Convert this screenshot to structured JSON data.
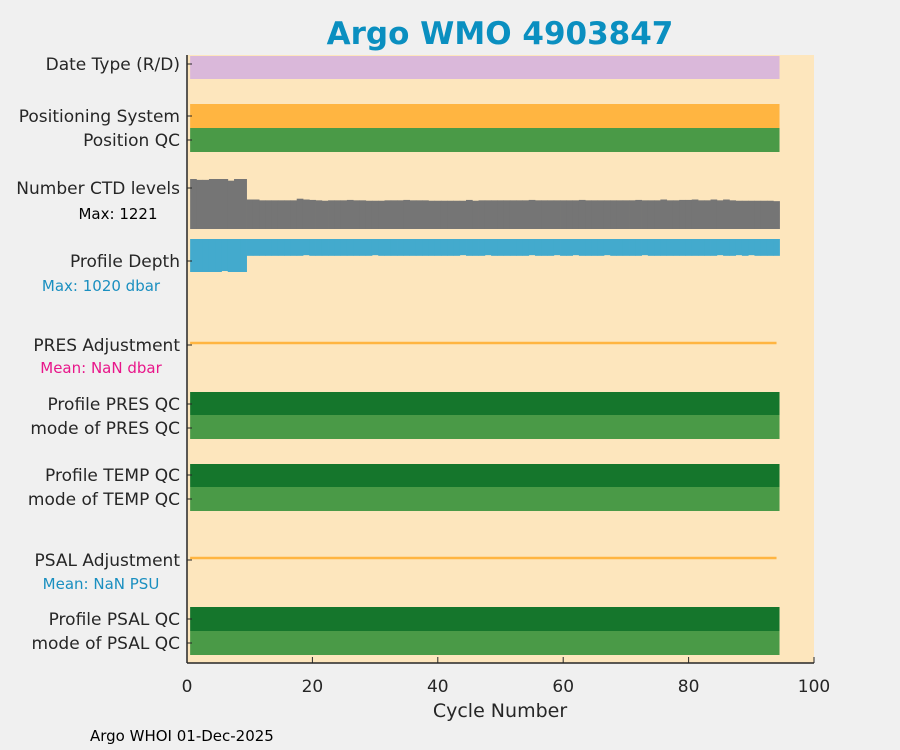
{
  "chart_data": {
    "type": "bar",
    "title": "Argo WMO 4903847",
    "xlabel": "Cycle Number",
    "xlim": [
      0,
      100
    ],
    "xticks": [
      "0",
      "20",
      "40",
      "60",
      "80",
      "100"
    ],
    "footer": "Argo WHOI 01-Dec-2025",
    "cycles_range": [
      1,
      94
    ],
    "rows": [
      {
        "label": "Date Type (R/D)",
        "kind": "band",
        "color": "#dab8da"
      },
      {
        "label": "Positioning System",
        "kind": "band",
        "color": "#ffb541"
      },
      {
        "label": "Position QC",
        "kind": "band",
        "color": "#4a9a47"
      },
      {
        "label": "Number CTD levels",
        "sublabel": "Max: 1221",
        "kind": "ctd",
        "color": "#757575",
        "sublabel_color": "#000000"
      },
      {
        "label": "Profile Depth",
        "sublabel": "Max: 1020 dbar",
        "kind": "depth",
        "color": "#43aacd",
        "sublabel_color": "#1a8fc0"
      },
      {
        "label": "PRES Adjustment",
        "sublabel": "Mean:  NaN dbar",
        "kind": "line",
        "color": "#ffb541",
        "sublabel_color": "#e8168a"
      },
      {
        "label": "Profile PRES QC",
        "kind": "band",
        "color": "#15762c"
      },
      {
        "label": "mode of PRES QC",
        "kind": "band",
        "color": "#4a9a47"
      },
      {
        "label": "Profile TEMP QC",
        "kind": "band",
        "color": "#15762c"
      },
      {
        "label": "mode of TEMP QC",
        "kind": "band",
        "color": "#4a9a47"
      },
      {
        "label": "PSAL Adjustment",
        "sublabel": "Mean:  NaN PSU",
        "kind": "line",
        "color": "#ffb541",
        "sublabel_color": "#1a8fc0"
      },
      {
        "label": "Profile PSAL QC",
        "kind": "band",
        "color": "#15762c"
      },
      {
        "label": "mode of PSAL QC",
        "kind": "band",
        "color": "#4a9a47"
      }
    ],
    "ctd_levels": [
      1221,
      1200,
      1200,
      1221,
      1221,
      1221,
      1180,
      1221,
      1221,
      720,
      720,
      700,
      700,
      700,
      700,
      700,
      700,
      740,
      720,
      710,
      700,
      690,
      700,
      700,
      700,
      710,
      700,
      700,
      690,
      690,
      690,
      700,
      700,
      700,
      710,
      700,
      700,
      700,
      690,
      690,
      690,
      690,
      690,
      690,
      710,
      690,
      700,
      700,
      700,
      700,
      700,
      700,
      700,
      700,
      710,
      700,
      700,
      700,
      700,
      700,
      700,
      700,
      710,
      700,
      700,
      700,
      700,
      700,
      700,
      700,
      700,
      710,
      700,
      700,
      700,
      720,
      700,
      700,
      710,
      710,
      720,
      700,
      700,
      720,
      700,
      720,
      700,
      690,
      690,
      690,
      690,
      690,
      690,
      680
    ],
    "profile_depth": [
      1020,
      1020,
      1020,
      1020,
      1020,
      990,
      1020,
      1020,
      1020,
      520,
      520,
      520,
      520,
      520,
      520,
      520,
      520,
      520,
      500,
      520,
      520,
      520,
      520,
      520,
      520,
      520,
      520,
      520,
      520,
      500,
      520,
      520,
      520,
      520,
      520,
      520,
      520,
      520,
      520,
      520,
      520,
      520,
      520,
      500,
      520,
      520,
      520,
      500,
      520,
      520,
      520,
      520,
      520,
      520,
      500,
      520,
      520,
      520,
      500,
      520,
      520,
      500,
      520,
      520,
      520,
      520,
      500,
      520,
      520,
      520,
      520,
      520,
      500,
      520,
      520,
      520,
      520,
      520,
      520,
      520,
      520,
      520,
      520,
      520,
      500,
      520,
      520,
      500,
      520,
      500,
      520,
      520,
      520,
      520
    ],
    "ctd_max": 1221,
    "depth_max": 1020,
    "plot_bg": "#fde6bd",
    "title_color": "#0a8fc0"
  }
}
